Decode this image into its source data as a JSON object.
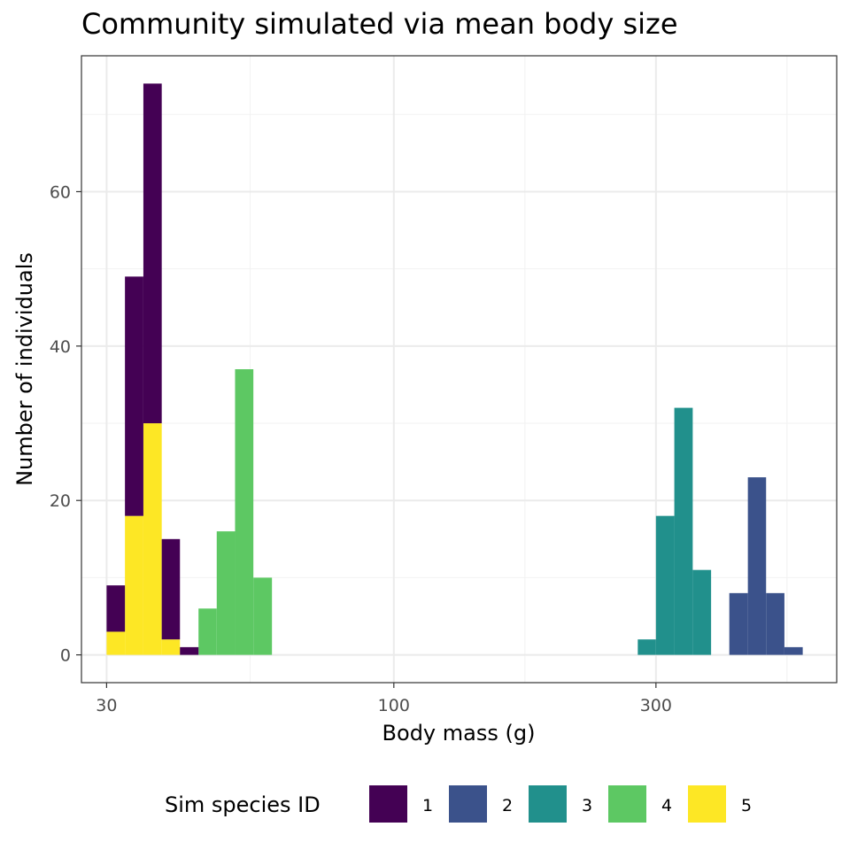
{
  "chart_data": {
    "type": "bar",
    "subtype": "stacked-histogram",
    "title": "Community simulated via mean body size",
    "xlabel": "Body mass (g)",
    "ylabel": "Number of individuals",
    "x_scale": "log10",
    "xlim": [
      27,
      640
    ],
    "ylim": [
      -3.6,
      77.6
    ],
    "x_ticks": [
      30,
      100,
      300
    ],
    "x_tick_labels": [
      "30",
      "100",
      "300"
    ],
    "y_ticks": [
      0,
      20,
      40,
      60
    ],
    "y_tick_labels": [
      "0",
      "20",
      "40",
      "60"
    ],
    "grid": true,
    "legend": {
      "title": "Sim species ID",
      "position": "bottom",
      "entries": [
        "1",
        "2",
        "3",
        "4",
        "5"
      ]
    },
    "series": [
      {
        "name": "1",
        "color": "#440154",
        "bins": [
          {
            "x0": 30.0,
            "x1": 32.4,
            "value": 6
          },
          {
            "x0": 32.4,
            "x1": 35.0,
            "value": 31
          },
          {
            "x0": 35.0,
            "x1": 37.8,
            "value": 44
          },
          {
            "x0": 37.8,
            "x1": 40.8,
            "value": 13
          },
          {
            "x0": 40.8,
            "x1": 44.1,
            "value": 1
          }
        ]
      },
      {
        "name": "2",
        "color": "#3B528B",
        "bins": [
          {
            "x0": 408,
            "x1": 441,
            "value": 8
          },
          {
            "x0": 441,
            "x1": 476,
            "value": 23
          },
          {
            "x0": 476,
            "x1": 514,
            "value": 8
          },
          {
            "x0": 514,
            "x1": 555,
            "value": 1
          }
        ]
      },
      {
        "name": "3",
        "color": "#21908C",
        "bins": [
          {
            "x0": 278,
            "x1": 300,
            "value": 2
          },
          {
            "x0": 300,
            "x1": 324,
            "value": 18
          },
          {
            "x0": 324,
            "x1": 350,
            "value": 32
          },
          {
            "x0": 350,
            "x1": 378,
            "value": 11
          }
        ]
      },
      {
        "name": "4",
        "color": "#5DC863",
        "bins": [
          {
            "x0": 44.1,
            "x1": 47.6,
            "value": 6
          },
          {
            "x0": 47.6,
            "x1": 51.4,
            "value": 16
          },
          {
            "x0": 51.4,
            "x1": 55.5,
            "value": 37
          },
          {
            "x0": 55.5,
            "x1": 60.0,
            "value": 10
          }
        ]
      },
      {
        "name": "5",
        "color": "#FDE725",
        "bins": [
          {
            "x0": 30.0,
            "x1": 32.4,
            "value": 3
          },
          {
            "x0": 32.4,
            "x1": 35.0,
            "value": 18
          },
          {
            "x0": 35.0,
            "x1": 37.8,
            "value": 30
          },
          {
            "x0": 37.8,
            "x1": 40.8,
            "value": 2
          }
        ]
      }
    ]
  }
}
